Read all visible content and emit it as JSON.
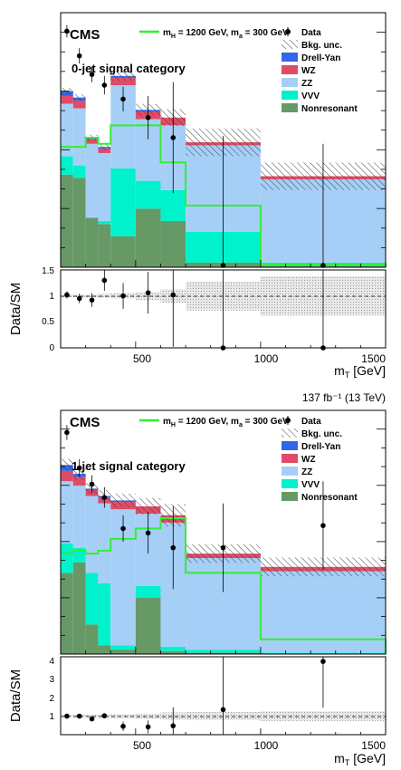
{
  "colors": {
    "drell_yan": "#3366e8",
    "wz": "#e04c66",
    "zz": "#a6cff7",
    "vvv": "#00f2cc",
    "nonresonant": "#669966",
    "signal": "#33ee33",
    "data": "#000000"
  },
  "lumi_label": "137 fb⁻¹ (13 TeV)",
  "common": {
    "cms": "CMS",
    "signal_label": "m_H = 1200 GeV, m_a = 300 GeV",
    "ratio_ylabel": "Data/SM",
    "xlabel": "m_T [GeV]",
    "x_ticks": [
      "500",
      "1000",
      "1500"
    ]
  },
  "chart_data": [
    {
      "type": "bar",
      "title": "0-jet signal category",
      "x": [
        200,
        250,
        300,
        350,
        400,
        500,
        600,
        700,
        1000,
        1500
      ],
      "xlim": [
        200,
        1500
      ],
      "legend": [
        "Data",
        "Bkg. unc.",
        "Drell-Yan",
        "WZ",
        "ZZ",
        "VVV",
        "Nonresonant"
      ],
      "stack": {
        "nonresonant": [
          0.6,
          0.58,
          0.32,
          0.28,
          0.2,
          0.38,
          0.3,
          0.03,
          0.01
        ],
        "vvv": [
          0.12,
          0.08,
          0.0,
          0.02,
          0.44,
          0.18,
          0.2,
          0.2,
          0.02
        ],
        "zz": [
          0.34,
          0.37,
          0.48,
          0.44,
          0.54,
          0.4,
          0.42,
          0.56,
          0.54
        ],
        "wz": [
          0.05,
          0.05,
          0.03,
          0.03,
          0.05,
          0.05,
          0.05,
          0.02,
          0.02
        ],
        "drell_yan": [
          0.03,
          0.02,
          0.01,
          0.01,
          0.01,
          0.01,
          0.0,
          0.0,
          0.0
        ]
      },
      "signal": [
        0.78,
        0.78,
        0.84,
        0.8,
        0.92,
        0.92,
        0.68,
        0.4,
        0.02
      ],
      "data": [
        {
          "x": 225,
          "y": 1.53,
          "err": 0.04
        },
        {
          "x": 275,
          "y": 1.37,
          "err": 0.05
        },
        {
          "x": 325,
          "y": 1.25,
          "err": 0.05
        },
        {
          "x": 375,
          "y": 1.18,
          "err": 0.06
        },
        {
          "x": 450,
          "y": 1.09,
          "err": 0.08
        },
        {
          "x": 550,
          "y": 0.97,
          "err": 0.14
        },
        {
          "x": 650,
          "y": 0.84,
          "err": 0.36
        },
        {
          "x": 850,
          "y": 0.0,
          "err": 0.85
        },
        {
          "x": 1250,
          "y": 0.0,
          "err": 0.8
        }
      ],
      "ratio": {
        "ylim": [
          0,
          1.5
        ],
        "yticks": [
          "0",
          "0.5",
          "1",
          "1.5"
        ],
        "unc": [
          0.03,
          0.03,
          0.03,
          0.04,
          0.05,
          0.08,
          0.13,
          0.28,
          0.38
        ],
        "points": [
          {
            "x": 225,
            "y": 1.02,
            "err": 0.07
          },
          {
            "x": 275,
            "y": 0.95,
            "err": 0.09
          },
          {
            "x": 325,
            "y": 0.92,
            "err": 0.13
          },
          {
            "x": 375,
            "y": 1.3,
            "err": 0.2
          },
          {
            "x": 450,
            "y": 1.0,
            "err": 0.25
          },
          {
            "x": 550,
            "y": 1.06,
            "err": 0.4
          },
          {
            "x": 650,
            "y": 1.02,
            "err": 1.0
          },
          {
            "x": 850,
            "y": 0.0,
            "err": 1.5
          },
          {
            "x": 1250,
            "y": 0.0,
            "err": 1.5
          }
        ]
      }
    },
    {
      "type": "bar",
      "title": "1-jet signal category",
      "x": [
        200,
        250,
        300,
        350,
        400,
        500,
        600,
        700,
        1000,
        1500
      ],
      "xlim": [
        200,
        1500
      ],
      "legend": [
        "Data",
        "Bkg. unc.",
        "Drell-Yan",
        "WZ",
        "ZZ",
        "VVV",
        "Nonresonant"
      ],
      "stack": {
        "nonresonant": [
          0.55,
          0.62,
          0.2,
          0.06,
          0.03,
          0.38,
          0.02,
          0.01,
          0.0
        ],
        "vvv": [
          0.2,
          0.1,
          0.35,
          0.42,
          0.03,
          0.08,
          0.03,
          0.02,
          0.01
        ],
        "zz": [
          0.42,
          0.42,
          0.52,
          0.54,
          0.92,
          0.49,
          0.84,
          0.62,
          0.55
        ],
        "wz": [
          0.07,
          0.06,
          0.04,
          0.04,
          0.05,
          0.05,
          0.05,
          0.03,
          0.03
        ],
        "drell_yan": [
          0.04,
          0.02,
          0.01,
          0.01,
          0.01,
          0.0,
          0.0,
          0.0,
          0.0
        ]
      },
      "signal": [
        0.68,
        0.7,
        0.68,
        0.7,
        0.78,
        0.85,
        0.92,
        0.55,
        0.1
      ],
      "data": [
        {
          "x": 225,
          "y": 1.5,
          "err": 0.05
        },
        {
          "x": 275,
          "y": 1.26,
          "err": 0.06
        },
        {
          "x": 325,
          "y": 1.15,
          "err": 0.06
        },
        {
          "x": 375,
          "y": 1.06,
          "err": 0.07
        },
        {
          "x": 450,
          "y": 0.85,
          "err": 0.09
        },
        {
          "x": 550,
          "y": 0.82,
          "err": 0.14
        },
        {
          "x": 650,
          "y": 0.72,
          "err": 0.28
        },
        {
          "x": 850,
          "y": 0.72,
          "err": 0.3
        },
        {
          "x": 1250,
          "y": 0.87,
          "err": 0.3
        }
      ],
      "ratio": {
        "ylim": [
          0,
          4.2
        ],
        "yticks": [
          "1",
          "2",
          "3",
          "4"
        ],
        "unc": [
          0.07,
          0.07,
          0.07,
          0.08,
          0.1,
          0.13,
          0.2,
          0.22,
          0.26
        ],
        "points": [
          {
            "x": 225,
            "y": 1.0,
            "err": 0.08
          },
          {
            "x": 275,
            "y": 1.0,
            "err": 0.1
          },
          {
            "x": 325,
            "y": 0.85,
            "err": 0.12
          },
          {
            "x": 375,
            "y": 1.02,
            "err": 0.14
          },
          {
            "x": 450,
            "y": 0.45,
            "err": 0.25
          },
          {
            "x": 550,
            "y": 0.42,
            "err": 0.35
          },
          {
            "x": 650,
            "y": 0.48,
            "err": 1.0
          },
          {
            "x": 850,
            "y": 1.35,
            "err": 3.0
          },
          {
            "x": 1250,
            "y": 3.95,
            "err": 2.5
          }
        ]
      }
    }
  ]
}
